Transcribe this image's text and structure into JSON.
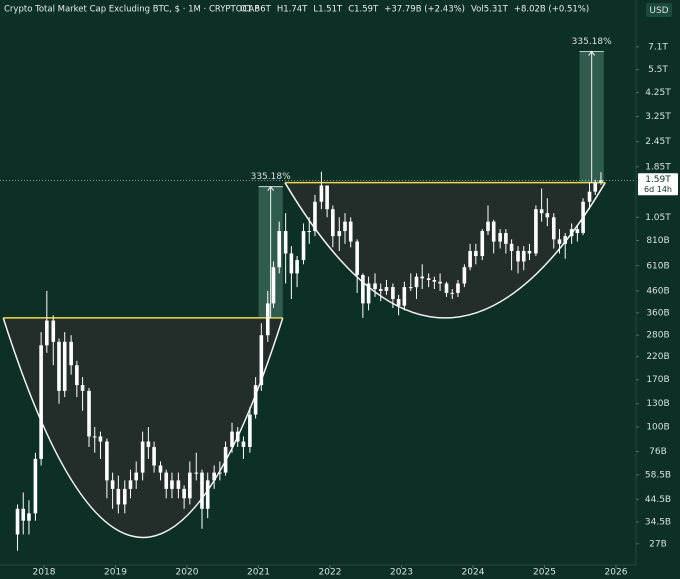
{
  "chart_data": {
    "type": "candlestick",
    "title": "Crypto Total Market Cap Excluding BTC, $ · 1M · CRYPTOCAP",
    "header_stats": [
      "O1.56T",
      "H1.74T",
      "L1.51T",
      "C1.59T",
      "+37.79B (+2.43%)",
      "Vol5.31T",
      "+8.02B (+0.51%)"
    ],
    "currency": "USD",
    "log_scale": true,
    "color": "#ffffff",
    "x": [
      2017.63,
      2017.71,
      2017.79,
      2017.88,
      2017.96,
      2018.04,
      2018.13,
      2018.21,
      2018.29,
      2018.38,
      2018.46,
      2018.54,
      2018.63,
      2018.71,
      2018.79,
      2018.88,
      2018.96,
      2019.04,
      2019.13,
      2019.21,
      2019.29,
      2019.38,
      2019.46,
      2019.54,
      2019.63,
      2019.71,
      2019.79,
      2019.88,
      2019.96,
      2020.04,
      2020.13,
      2020.21,
      2020.29,
      2020.38,
      2020.46,
      2020.54,
      2020.63,
      2020.71,
      2020.79,
      2020.88,
      2020.96,
      2021.04,
      2021.13,
      2021.21,
      2021.29,
      2021.38,
      2021.46,
      2021.54,
      2021.63,
      2021.71,
      2021.79,
      2021.88,
      2021.96,
      2022.04,
      2022.13,
      2022.21,
      2022.29,
      2022.38,
      2022.46,
      2022.54,
      2022.63,
      2022.71,
      2022.79,
      2022.88,
      2022.96,
      2023.04,
      2023.13,
      2023.21,
      2023.29,
      2023.38,
      2023.46,
      2023.54,
      2023.63,
      2023.71,
      2023.79,
      2023.88,
      2023.96,
      2024.04,
      2024.13,
      2024.21,
      2024.29,
      2024.38,
      2024.46,
      2024.54,
      2024.63,
      2024.71,
      2024.79,
      2024.88,
      2024.96,
      2025.04,
      2025.13,
      2025.21,
      2025.29,
      2025.38,
      2025.46,
      2025.54,
      2025.63,
      2025.71,
      2025.79
    ],
    "open": [
      30,
      40,
      35,
      38,
      70,
      250,
      330,
      260,
      150,
      260,
      200,
      160,
      150,
      90,
      90,
      85,
      55,
      50,
      42,
      50,
      55,
      60,
      85,
      80,
      65,
      60,
      50,
      55,
      50,
      45,
      60,
      60,
      40,
      55,
      60,
      60,
      80,
      95,
      85,
      80,
      115,
      160,
      280,
      400,
      600,
      900,
      700,
      560,
      650,
      900,
      900,
      1250,
      1500,
      1150,
      850,
      900,
      1000,
      800,
      550,
      400,
      500,
      470,
      460,
      480,
      420,
      390,
      480,
      480,
      540,
      530,
      520,
      510,
      500,
      450,
      450,
      500,
      600,
      720,
      680,
      900,
      1000,
      800,
      880,
      780,
      720,
      640,
      720,
      700,
      1150,
      1100,
      1050,
      820,
      780,
      850,
      920,
      880,
      1250,
      1400,
      1560
    ],
    "high": [
      42,
      48,
      44,
      75,
      290,
      460,
      350,
      270,
      290,
      280,
      210,
      175,
      155,
      100,
      95,
      88,
      60,
      58,
      55,
      62,
      68,
      95,
      100,
      85,
      68,
      62,
      60,
      60,
      52,
      68,
      75,
      62,
      60,
      65,
      68,
      85,
      105,
      100,
      90,
      125,
      175,
      320,
      460,
      640,
      1000,
      1100,
      760,
      680,
      980,
      1050,
      1350,
      1750,
      1500,
      1200,
      1050,
      1100,
      1050,
      820,
      560,
      540,
      560,
      500,
      520,
      500,
      440,
      510,
      560,
      560,
      620,
      560,
      540,
      560,
      510,
      470,
      520,
      620,
      780,
      780,
      920,
      1200,
      1020,
      920,
      920,
      820,
      760,
      760,
      780,
      1200,
      1450,
      1300,
      1100,
      920,
      880,
      980,
      960,
      1300,
      1550,
      1600,
      1740
    ],
    "low": [
      25,
      30,
      30,
      35,
      65,
      230,
      200,
      130,
      140,
      180,
      140,
      120,
      80,
      75,
      70,
      45,
      40,
      38,
      38,
      45,
      50,
      55,
      70,
      60,
      55,
      45,
      45,
      45,
      40,
      42,
      55,
      32,
      36,
      50,
      55,
      58,
      75,
      80,
      70,
      75,
      110,
      150,
      260,
      380,
      560,
      500,
      420,
      480,
      620,
      780,
      850,
      1150,
      1050,
      750,
      720,
      780,
      750,
      450,
      340,
      370,
      430,
      410,
      440,
      380,
      350,
      370,
      460,
      420,
      470,
      480,
      470,
      460,
      430,
      420,
      430,
      480,
      580,
      620,
      650,
      860,
      700,
      740,
      700,
      580,
      560,
      580,
      650,
      680,
      1000,
      950,
      740,
      700,
      660,
      780,
      800,
      860,
      1150,
      1350,
      1510
    ],
    "close": [
      40,
      35,
      38,
      70,
      250,
      330,
      260,
      150,
      260,
      200,
      160,
      150,
      90,
      90,
      85,
      55,
      50,
      42,
      50,
      55,
      60,
      85,
      80,
      65,
      60,
      50,
      55,
      50,
      45,
      60,
      60,
      40,
      55,
      60,
      60,
      80,
      95,
      85,
      80,
      115,
      160,
      280,
      400,
      600,
      900,
      700,
      560,
      650,
      900,
      900,
      1250,
      1500,
      1150,
      850,
      900,
      1000,
      800,
      550,
      400,
      500,
      470,
      460,
      480,
      420,
      390,
      480,
      480,
      540,
      530,
      520,
      510,
      500,
      450,
      450,
      500,
      600,
      720,
      680,
      900,
      1000,
      800,
      880,
      780,
      720,
      640,
      720,
      700,
      1150,
      1100,
      1050,
      820,
      780,
      850,
      920,
      880,
      1250,
      1400,
      1552,
      1590
    ],
    "xlim": [
      2017.385,
      2026.28
    ],
    "xticks": [
      2018,
      2019,
      2020,
      2021,
      2022,
      2023,
      2024,
      2025,
      2026
    ],
    "ylim": [
      21.3,
      12000
    ],
    "yticks": [
      {
        "value": 27,
        "label": "27B"
      },
      {
        "value": 34.5,
        "label": "34.5B"
      },
      {
        "value": 44.5,
        "label": "44.5B"
      },
      {
        "value": 58.5,
        "label": "58.5B"
      },
      {
        "value": 76,
        "label": "76B"
      },
      {
        "value": 100,
        "label": "100B"
      },
      {
        "value": 130,
        "label": "130B"
      },
      {
        "value": 170,
        "label": "170B"
      },
      {
        "value": 220,
        "label": "220B"
      },
      {
        "value": 280,
        "label": "280B"
      },
      {
        "value": 360,
        "label": "360B"
      },
      {
        "value": 460,
        "label": "460B"
      },
      {
        "value": 610,
        "label": "610B"
      },
      {
        "value": 810,
        "label": "810B"
      },
      {
        "value": 1050,
        "label": "1.05T"
      },
      {
        "value": 1850,
        "label": "1.85T"
      },
      {
        "value": 2450,
        "label": "2.45T"
      },
      {
        "value": 3250,
        "label": "3.25T"
      },
      {
        "value": 4250,
        "label": "4.25T"
      },
      {
        "value": 5500,
        "label": "5.5T"
      },
      {
        "value": 7100,
        "label": "7.1T"
      }
    ],
    "last_price": {
      "value": 1590,
      "label": "1.59T",
      "countdown": "6d 14h"
    },
    "cups": [
      {
        "rim": 340,
        "bottom": 29,
        "x": [
          2017.43,
          2021.34
        ],
        "color": "#f0d84a"
      },
      {
        "rim": 1550,
        "bottom": 340,
        "x": [
          2021.37,
          2025.85
        ],
        "color": "#f0d84a"
      }
    ],
    "measured_moves": [
      {
        "from": 340,
        "to": 1480,
        "x": [
          2021.0,
          2021.34
        ],
        "label": "335.18%"
      },
      {
        "from": 1550,
        "to": 6745,
        "x": [
          2025.49,
          2025.83
        ],
        "label": "335.18%"
      }
    ]
  }
}
